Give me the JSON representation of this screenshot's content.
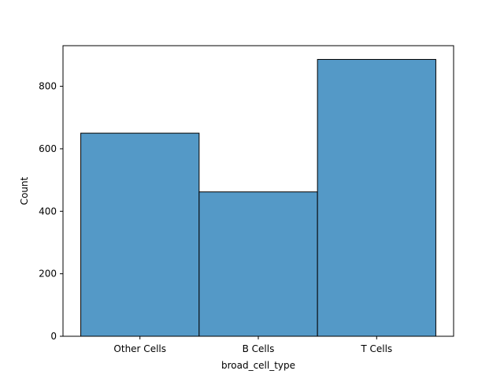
{
  "chart_data": {
    "type": "bar",
    "title": "",
    "xlabel": "broad_cell_type",
    "ylabel": "Count",
    "categories": [
      "Other Cells",
      "B Cells",
      "T Cells"
    ],
    "values": [
      650,
      462,
      886
    ],
    "ylim": [
      0,
      930
    ],
    "yticks": [
      0,
      200,
      400,
      600,
      800
    ],
    "ytick_labels": [
      "0",
      "200",
      "400",
      "600",
      "800"
    ],
    "grid": false,
    "bar_color": "#5499c7",
    "bar_edge_color": "#000000"
  }
}
